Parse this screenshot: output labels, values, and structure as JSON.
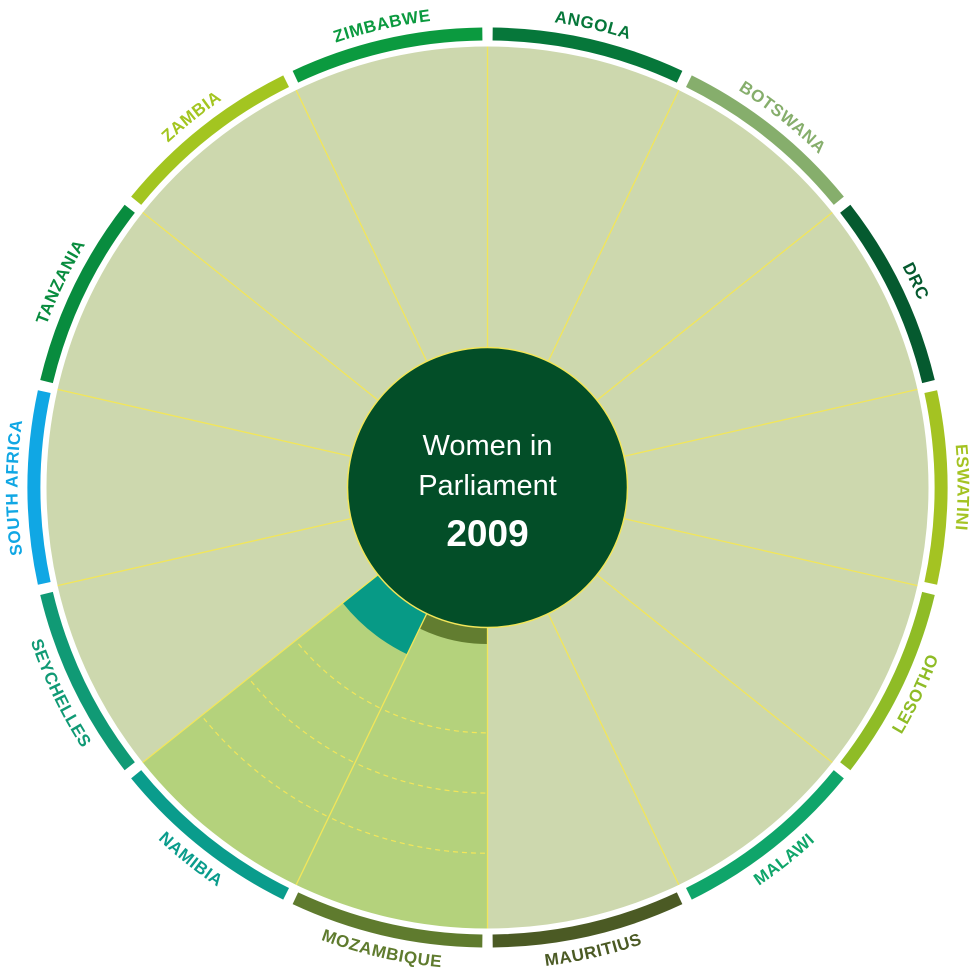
{
  "center": {
    "title_line1": "Women in",
    "title_line2": "Parliament",
    "year": "2009"
  },
  "colors": {
    "background_sector": "#cdd8ae",
    "highlight_sector": "#b4d27c",
    "divider": "#f2e65a",
    "center_fill": "#034e28"
  },
  "countries": [
    {
      "name": "ANGOLA",
      "ring_color": "#06773a",
      "highlight": false
    },
    {
      "name": "BOTSWANA",
      "ring_color": "#86ae6c",
      "highlight": false
    },
    {
      "name": "DRC",
      "ring_color": "#055a2f",
      "highlight": false
    },
    {
      "name": "ESWATINI",
      "ring_color": "#a4c322",
      "highlight": false
    },
    {
      "name": "LESOTHO",
      "ring_color": "#8fbc26",
      "highlight": false
    },
    {
      "name": "MALAWI",
      "ring_color": "#0fa56a",
      "highlight": false
    },
    {
      "name": "MAURITIUS",
      "ring_color": "#4b5a24",
      "highlight": false
    },
    {
      "name": "MOZAMBIQUE",
      "ring_color": "#5f7b2e",
      "highlight": true,
      "level": 0.055,
      "level_color": "#627d30"
    },
    {
      "name": "NAMIBIA",
      "ring_color": "#0a9c8c",
      "highlight": true,
      "level": 0.15,
      "level_color": "#079a86"
    },
    {
      "name": "SEYCHELLES",
      "ring_color": "#109a75",
      "highlight": false
    },
    {
      "name": "SOUTH AFRICA",
      "ring_color": "#10a7e4",
      "highlight": false
    },
    {
      "name": "TANZANIA",
      "ring_color": "#088c3e",
      "highlight": false
    },
    {
      "name": "ZAMBIA",
      "ring_color": "#a3c520",
      "highlight": false
    },
    {
      "name": "ZIMBABWE",
      "ring_color": "#0b9a3f",
      "highlight": false
    }
  ]
}
